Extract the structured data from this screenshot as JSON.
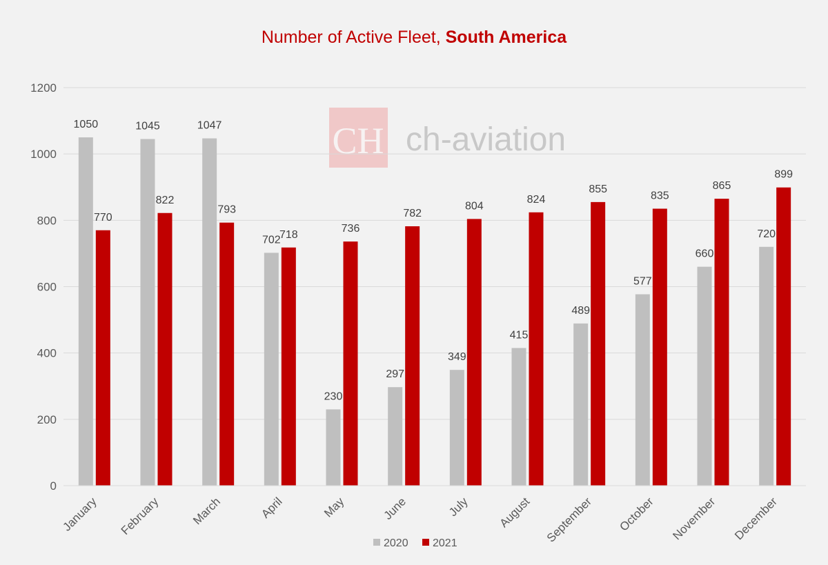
{
  "chart_data": {
    "type": "bar",
    "title": "Number of Active Fleet, ",
    "title_bold": "South America",
    "categories": [
      "January",
      "February",
      "March",
      "April",
      "May",
      "June",
      "July",
      "August",
      "September",
      "October",
      "November",
      "December"
    ],
    "series": [
      {
        "name": "2020",
        "color": "#bfbfbf",
        "values": [
          1050,
          1045,
          1047,
          702,
          230,
          297,
          349,
          415,
          489,
          577,
          660,
          720
        ]
      },
      {
        "name": "2021",
        "color": "#c00000",
        "values": [
          770,
          822,
          793,
          718,
          736,
          782,
          804,
          824,
          855,
          835,
          865,
          899
        ]
      }
    ],
    "ylim": [
      0,
      1200
    ],
    "yticks": [
      0,
      200,
      400,
      600,
      800,
      1000,
      1200
    ],
    "grid": true,
    "legend": "bottom",
    "data_labels": true
  },
  "watermark": {
    "logo_text": "CH",
    "text": "ch-aviation"
  }
}
